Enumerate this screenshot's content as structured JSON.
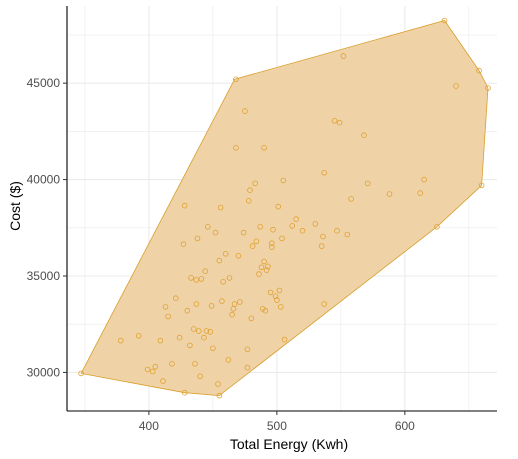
{
  "chart_data": {
    "type": "scatter",
    "title": "",
    "xlabel": "Total Energy (Kwh)",
    "ylabel": "Cost ($)",
    "xlim": [
      336,
      672
    ],
    "ylim": [
      28000,
      49000
    ],
    "x_ticks": [
      400,
      500,
      600
    ],
    "x_tick_labels": [
      "400",
      "500",
      "600"
    ],
    "y_ticks": [
      30000,
      35000,
      40000,
      45000
    ],
    "y_tick_labels": [
      "30000",
      "35000",
      "40000",
      "45000"
    ],
    "grid": true,
    "legend": "none",
    "colors": {
      "hull_fill": "#efd3a6",
      "hull_stroke": "#d99e2b",
      "point_stroke": "#e0a030",
      "grid": "#ebebeb",
      "axis": "#000000"
    },
    "hull": [
      [
        347,
        29950
      ],
      [
        428,
        28950
      ],
      [
        455,
        28800
      ],
      [
        625,
        37550
      ],
      [
        660,
        39700
      ],
      [
        665,
        44750
      ],
      [
        658,
        45650
      ],
      [
        631,
        48250
      ],
      [
        467,
        45200
      ]
    ],
    "points": [
      [
        347,
        29950
      ],
      [
        378,
        31650
      ],
      [
        392,
        31900
      ],
      [
        399,
        30150
      ],
      [
        403,
        30050
      ],
      [
        405,
        30300
      ],
      [
        409,
        31650
      ],
      [
        411,
        29550
      ],
      [
        413,
        33400
      ],
      [
        415,
        32900
      ],
      [
        418,
        30450
      ],
      [
        421,
        33850
      ],
      [
        424,
        31800
      ],
      [
        427,
        36650
      ],
      [
        428,
        38650
      ],
      [
        428,
        28950
      ],
      [
        430,
        33200
      ],
      [
        432,
        31400
      ],
      [
        433,
        34900
      ],
      [
        435,
        32250
      ],
      [
        436,
        30450
      ],
      [
        437,
        34800
      ],
      [
        437,
        33550
      ],
      [
        438,
        36950
      ],
      [
        439,
        32150
      ],
      [
        440,
        29800
      ],
      [
        441,
        34850
      ],
      [
        443,
        31800
      ],
      [
        444,
        35250
      ],
      [
        445,
        32150
      ],
      [
        446,
        37550
      ],
      [
        448,
        32100
      ],
      [
        449,
        33450
      ],
      [
        450,
        31250
      ],
      [
        452,
        37250
      ],
      [
        454,
        29400
      ],
      [
        455,
        35800
      ],
      [
        456,
        38550
      ],
      [
        457,
        33700
      ],
      [
        455,
        28800
      ],
      [
        458,
        34700
      ],
      [
        460,
        36150
      ],
      [
        462,
        30650
      ],
      [
        463,
        34900
      ],
      [
        465,
        33000
      ],
      [
        466,
        33300
      ],
      [
        467,
        33550
      ],
      [
        468,
        41650
      ],
      [
        468,
        45200
      ],
      [
        470,
        36050
      ],
      [
        471,
        33650
      ],
      [
        474,
        37250
      ],
      [
        475,
        43550
      ],
      [
        477,
        30250
      ],
      [
        477,
        31200
      ],
      [
        478,
        38900
      ],
      [
        479,
        39450
      ],
      [
        480,
        32800
      ],
      [
        481,
        36550
      ],
      [
        483,
        39800
      ],
      [
        484,
        36800
      ],
      [
        486,
        35100
      ],
      [
        487,
        37550
      ],
      [
        488,
        35450
      ],
      [
        489,
        33300
      ],
      [
        490,
        35750
      ],
      [
        490,
        41650
      ],
      [
        491,
        33200
      ],
      [
        492,
        35300
      ],
      [
        493,
        35500
      ],
      [
        495,
        34150
      ],
      [
        496,
        36500
      ],
      [
        496,
        36700
      ],
      [
        497,
        37400
      ],
      [
        499,
        33950
      ],
      [
        500,
        33750
      ],
      [
        501,
        38600
      ],
      [
        502,
        34250
      ],
      [
        503,
        33400
      ],
      [
        504,
        36950
      ],
      [
        505,
        39950
      ],
      [
        506,
        31700
      ],
      [
        512,
        37600
      ],
      [
        515,
        37950
      ],
      [
        520,
        37350
      ],
      [
        530,
        37700
      ],
      [
        535,
        36550
      ],
      [
        536,
        37050
      ],
      [
        537,
        40350
      ],
      [
        537,
        33550
      ],
      [
        545,
        43050
      ],
      [
        547,
        37350
      ],
      [
        549,
        42950
      ],
      [
        552,
        46400
      ],
      [
        555,
        37150
      ],
      [
        558,
        39000
      ],
      [
        568,
        42300
      ],
      [
        571,
        39800
      ],
      [
        588,
        39250
      ],
      [
        612,
        39300
      ],
      [
        615,
        40000
      ],
      [
        625,
        37550
      ],
      [
        631,
        48250
      ],
      [
        640,
        44850
      ],
      [
        658,
        45650
      ],
      [
        660,
        39700
      ],
      [
        665,
        44750
      ]
    ]
  }
}
